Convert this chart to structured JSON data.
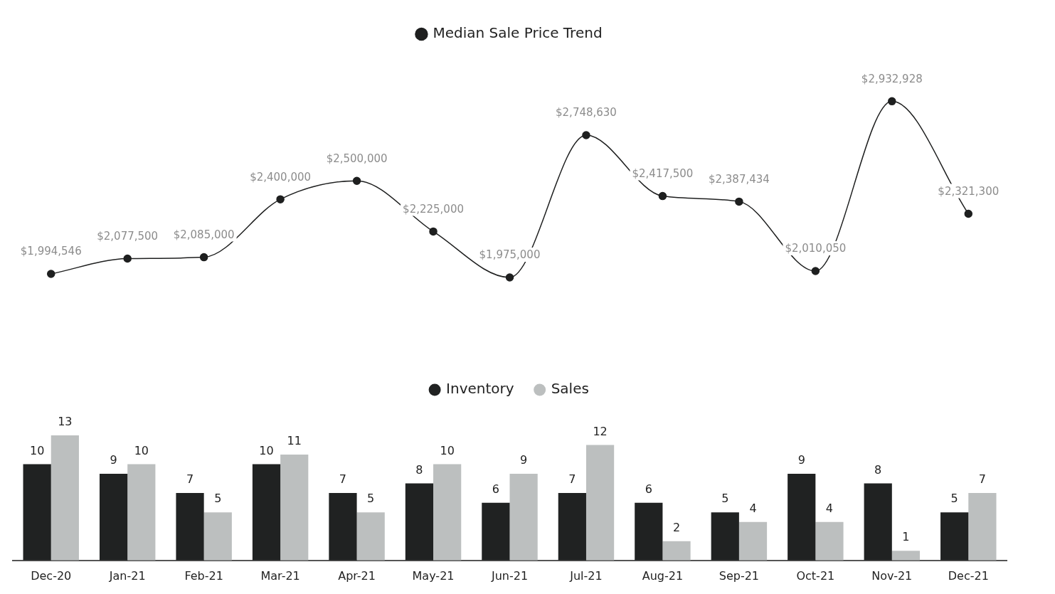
{
  "chart_data": [
    {
      "type": "line",
      "categories": [
        null,
        null,
        null,
        null,
        null,
        null,
        null,
        null,
        null,
        null,
        null,
        null,
        null
      ],
      "tick_labels": false,
      "legend": "top",
      "grid": false,
      "marker": "circle",
      "line_style": "solid",
      "series": [
        {
          "name": "Median Sale Price Trend",
          "color": "#1e1f1f",
          "values": [
            1994546,
            2077500,
            2085000,
            2400000,
            2500000,
            2225000,
            1975000,
            2748630,
            2417500,
            2387434,
            2010050,
            2932928,
            2321300
          ],
          "value_labels": [
            "$1,994,546",
            "$2,077,500",
            "$2,085,000",
            "$2,400,000",
            "$2,500,000",
            "$2,225,000",
            "$1,975,000",
            "$2,748,630",
            "$2,417,500",
            "$2,387,434",
            "$2,010,050",
            "$2,932,928",
            "$2,321,300"
          ]
        }
      ]
    },
    {
      "type": "bar",
      "categories": [
        "Dec-20",
        "Jan-21",
        "Feb-21",
        "Mar-21",
        "Apr-21",
        "May-21",
        "Jun-21",
        "Jul-21",
        "Aug-21",
        "Sep-21",
        "Oct-21",
        "Nov-21",
        "Dec-21"
      ],
      "tick_labels": "x",
      "legend": "top",
      "grid": false,
      "series": [
        {
          "name": "Inventory",
          "color": "#202222",
          "values": [
            10,
            9,
            7,
            10,
            7,
            8,
            6,
            7,
            6,
            5,
            9,
            8,
            5
          ],
          "value_labels": [
            "10",
            "9",
            "7",
            "10",
            "7",
            "8",
            "6",
            "7",
            "6",
            "5",
            "9",
            "8",
            "5"
          ]
        },
        {
          "name": "Sales",
          "color": "#bcbfbf",
          "values": [
            13,
            10,
            5,
            11,
            5,
            10,
            9,
            12,
            2,
            4,
            4,
            1,
            7
          ],
          "value_labels": [
            "13",
            "10",
            "5",
            "11",
            "5",
            "10",
            "9",
            "12",
            "2",
            "4",
            "4",
            "1",
            "7"
          ]
        }
      ]
    }
  ]
}
